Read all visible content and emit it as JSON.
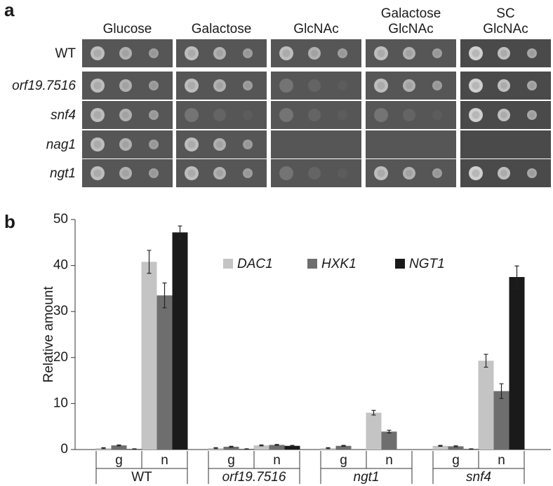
{
  "panel_labels": [
    "a",
    "b"
  ],
  "panel_a": {
    "columns": [
      [
        "Glucose"
      ],
      [
        "Galactose"
      ],
      [
        "GlcNAc"
      ],
      [
        "Galactose",
        "GlcNAc"
      ],
      [
        "SC",
        "GlcNAc"
      ]
    ],
    "rows": [
      "WT",
      "orf19.7516",
      "snf4",
      "nag1",
      "ngt1"
    ]
  },
  "chart_data": {
    "type": "bar",
    "ylabel": "Relative amount",
    "groups": [
      "WT",
      "orf19.7516",
      "ngt1",
      "snf4"
    ],
    "categories": [
      "g",
      "n",
      "g",
      "n",
      "g",
      "n",
      "g",
      "n"
    ],
    "series": [
      {
        "name": "DAC1",
        "color": "#c4c4c4",
        "values": [
          0.3,
          40.8,
          0.3,
          0.9,
          0.3,
          8.0,
          0.8,
          19.3
        ],
        "errors": [
          0.1,
          2.5,
          0.1,
          0.1,
          0.1,
          0.5,
          0.1,
          1.4
        ]
      },
      {
        "name": "HXK1",
        "color": "#6e6e6e",
        "values": [
          0.9,
          33.5,
          0.6,
          1.0,
          0.8,
          3.9,
          0.7,
          12.7
        ],
        "errors": [
          0.1,
          2.7,
          0.1,
          0.1,
          0.1,
          0.3,
          0.1,
          1.6
        ]
      },
      {
        "name": "NGT1",
        "color": "#1a1a1a",
        "values": [
          0.1,
          47.2,
          0.1,
          0.8,
          0,
          0,
          0.1,
          37.5
        ],
        "errors": [
          0.05,
          1.4,
          0.05,
          0.1,
          0,
          0,
          0.05,
          2.4
        ]
      }
    ],
    "ylim": [
      0,
      50
    ],
    "yticks": [
      0,
      10,
      20,
      30,
      40,
      50
    ],
    "legend": "upper center",
    "error_bars": true
  }
}
